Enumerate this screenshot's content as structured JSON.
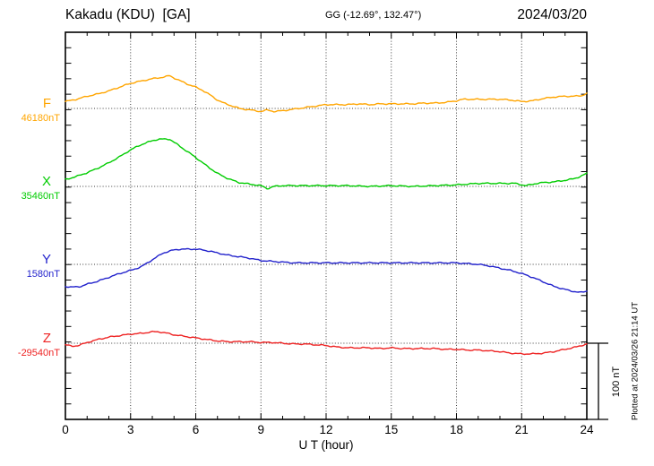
{
  "header": {
    "title": "Kakadu (KDU)  [GA]",
    "coordinates": "GG (-12.69°, 132.47°)",
    "date": "2024/03/20"
  },
  "chart_data": {
    "type": "line",
    "title": "Kakadu (KDU)  [GA]",
    "subtitle": "GG (-12.69°, 132.47°)",
    "date": "2024/03/20",
    "xlabel": "U T (hour)",
    "xlim": [
      0,
      24
    ],
    "x_major_ticks": [
      0,
      3,
      6,
      9,
      12,
      15,
      18,
      21,
      24
    ],
    "x_minor_step_hours": 1,
    "y_tick_interval_nT": 20,
    "grid": "dotted vertical lines every 3 hours; dotted horizontal line at each channel baseline",
    "scale_bar": {
      "label": "100 nT",
      "span_nT": 100
    },
    "plotted_at": "Plotted at 2024/03/26 21:14 UT",
    "series": [
      {
        "name": "F",
        "baseline_label": "46180nT",
        "baseline_nT": 46180,
        "color": "#FFA500",
        "points_hour_offsetnT": [
          [
            0,
            9
          ],
          [
            0.5,
            12
          ],
          [
            1,
            16
          ],
          [
            1.5,
            19
          ],
          [
            2,
            23
          ],
          [
            2.5,
            28
          ],
          [
            3,
            33
          ],
          [
            3.5,
            36
          ],
          [
            4,
            39
          ],
          [
            4.5,
            41
          ],
          [
            4.8,
            43
          ],
          [
            5,
            40
          ],
          [
            5.3,
            36
          ],
          [
            5.7,
            31
          ],
          [
            6,
            28
          ],
          [
            6.3,
            24
          ],
          [
            6.7,
            17
          ],
          [
            7,
            11
          ],
          [
            7.3,
            7
          ],
          [
            7.7,
            3
          ],
          [
            8,
            0
          ],
          [
            8.5,
            -2
          ],
          [
            9,
            -4
          ],
          [
            9.3,
            -2
          ],
          [
            9.6,
            -4
          ],
          [
            10,
            -3
          ],
          [
            10.5,
            -1
          ],
          [
            11,
            1
          ],
          [
            11.5,
            3
          ],
          [
            12,
            5
          ],
          [
            12.5,
            5
          ],
          [
            13,
            5
          ],
          [
            13.5,
            6
          ],
          [
            14,
            5
          ],
          [
            14.5,
            6
          ],
          [
            15,
            6
          ],
          [
            15.5,
            6
          ],
          [
            16,
            6
          ],
          [
            16.5,
            7
          ],
          [
            17,
            7
          ],
          [
            17.5,
            8
          ],
          [
            18,
            10
          ],
          [
            18.3,
            12
          ],
          [
            19,
            12
          ],
          [
            19.5,
            12
          ],
          [
            20,
            12
          ],
          [
            20.5,
            11
          ],
          [
            21,
            9
          ],
          [
            21.5,
            10
          ],
          [
            22,
            13
          ],
          [
            22.5,
            15
          ],
          [
            23,
            16
          ],
          [
            23.5,
            16
          ],
          [
            23.8,
            17
          ],
          [
            24,
            20
          ]
        ]
      },
      {
        "name": "X",
        "baseline_label": "35460nT",
        "baseline_nT": 35460,
        "color": "#00CC00",
        "points_hour_offsetnT": [
          [
            0,
            9
          ],
          [
            0.5,
            13
          ],
          [
            1,
            18
          ],
          [
            1.5,
            24
          ],
          [
            2,
            31
          ],
          [
            2.5,
            39
          ],
          [
            3,
            48
          ],
          [
            3.5,
            55
          ],
          [
            4,
            60
          ],
          [
            4.3,
            62
          ],
          [
            4.8,
            62
          ],
          [
            5,
            58
          ],
          [
            5.5,
            48
          ],
          [
            6,
            38
          ],
          [
            6.5,
            27
          ],
          [
            7,
            17
          ],
          [
            7.5,
            10
          ],
          [
            8,
            5
          ],
          [
            8.5,
            3
          ],
          [
            9,
            1
          ],
          [
            9.3,
            -3
          ],
          [
            9.6,
            0
          ],
          [
            10,
            1
          ],
          [
            10.5,
            1
          ],
          [
            11,
            1
          ],
          [
            11.5,
            1
          ],
          [
            12,
            1
          ],
          [
            13,
            1
          ],
          [
            14,
            0
          ],
          [
            15,
            1
          ],
          [
            16,
            0
          ],
          [
            17,
            1
          ],
          [
            18,
            2
          ],
          [
            19,
            4
          ],
          [
            20,
            4
          ],
          [
            20.7,
            4
          ],
          [
            21.2,
            1
          ],
          [
            21.7,
            4
          ],
          [
            22,
            5
          ],
          [
            22.5,
            6
          ],
          [
            23,
            8
          ],
          [
            23.4,
            10
          ],
          [
            23.7,
            13
          ],
          [
            24,
            17
          ]
        ]
      },
      {
        "name": "Y",
        "baseline_label": "1580nT",
        "baseline_nT": 1580,
        "color": "#2222CC",
        "points_hour_offsetnT": [
          [
            0,
            -29
          ],
          [
            0.3,
            -30
          ],
          [
            0.7,
            -29
          ],
          [
            1,
            -26
          ],
          [
            1.5,
            -22
          ],
          [
            2,
            -17
          ],
          [
            2.5,
            -12
          ],
          [
            3,
            -8
          ],
          [
            3.5,
            -3
          ],
          [
            4,
            6
          ],
          [
            4.5,
            15
          ],
          [
            5,
            19
          ],
          [
            5.3,
            20
          ],
          [
            5.7,
            20
          ],
          [
            6,
            20
          ],
          [
            6.3,
            19
          ],
          [
            6.7,
            17
          ],
          [
            7,
            15
          ],
          [
            7.5,
            12
          ],
          [
            8,
            10
          ],
          [
            8.5,
            8
          ],
          [
            9,
            5
          ],
          [
            9.5,
            4
          ],
          [
            10,
            3
          ],
          [
            10.5,
            2
          ],
          [
            11,
            2
          ],
          [
            12,
            2
          ],
          [
            13,
            2
          ],
          [
            14,
            2
          ],
          [
            15,
            2
          ],
          [
            16,
            2
          ],
          [
            17,
            2
          ],
          [
            18,
            2
          ],
          [
            18.5,
            1
          ],
          [
            19,
            0
          ],
          [
            19.5,
            -2
          ],
          [
            20,
            -5
          ],
          [
            20.5,
            -8
          ],
          [
            21,
            -12
          ],
          [
            21.5,
            -17
          ],
          [
            22,
            -23
          ],
          [
            22.5,
            -29
          ],
          [
            23,
            -33
          ],
          [
            23.3,
            -35
          ],
          [
            23.7,
            -37
          ],
          [
            24,
            -35
          ]
        ]
      },
      {
        "name": "Z",
        "baseline_label": "-29540nT",
        "baseline_nT": -29540,
        "color": "#EE2222",
        "points_hour_offsetnT": [
          [
            0,
            -2
          ],
          [
            0.3,
            -4
          ],
          [
            0.6,
            -3
          ],
          [
            1,
            1
          ],
          [
            1.5,
            5
          ],
          [
            2,
            8
          ],
          [
            2.5,
            10
          ],
          [
            3,
            12
          ],
          [
            3.5,
            13
          ],
          [
            4,
            15
          ],
          [
            4.3,
            15
          ],
          [
            4.7,
            13
          ],
          [
            5,
            11
          ],
          [
            5.5,
            9
          ],
          [
            6,
            7
          ],
          [
            6.5,
            5
          ],
          [
            7,
            3
          ],
          [
            7.5,
            2
          ],
          [
            8,
            2
          ],
          [
            8.5,
            2
          ],
          [
            9,
            1
          ],
          [
            9.5,
            1
          ],
          [
            10,
            0
          ],
          [
            10.5,
            -1
          ],
          [
            11,
            -1
          ],
          [
            11.5,
            -2
          ],
          [
            12,
            -3
          ],
          [
            12.5,
            -5
          ],
          [
            13,
            -6
          ],
          [
            13.5,
            -6
          ],
          [
            14,
            -6
          ],
          [
            14.5,
            -7
          ],
          [
            15,
            -6
          ],
          [
            15.5,
            -7
          ],
          [
            16,
            -7
          ],
          [
            16.5,
            -7
          ],
          [
            17,
            -7
          ],
          [
            17.5,
            -8
          ],
          [
            18,
            -8
          ],
          [
            18.5,
            -9
          ],
          [
            19,
            -9
          ],
          [
            19.5,
            -10
          ],
          [
            20,
            -11
          ],
          [
            20.5,
            -13
          ],
          [
            21,
            -14
          ],
          [
            21.5,
            -14
          ],
          [
            22,
            -13
          ],
          [
            22.5,
            -11
          ],
          [
            23,
            -8
          ],
          [
            23.5,
            -5
          ],
          [
            24,
            -1
          ]
        ]
      }
    ]
  }
}
